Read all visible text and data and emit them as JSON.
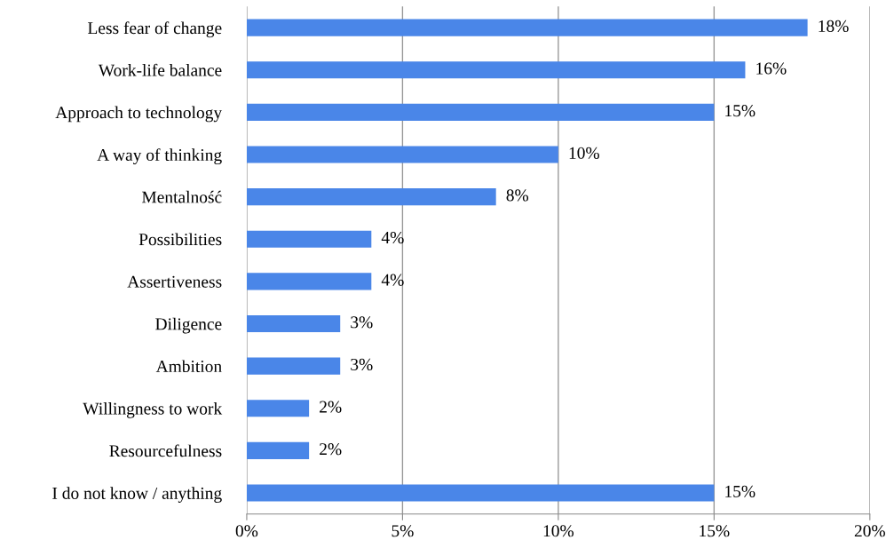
{
  "chart_data": {
    "type": "bar",
    "orientation": "horizontal",
    "categories": [
      "Less fear of change",
      "Work-life balance",
      "Approach to technology",
      "A way of thinking",
      "Mentalność",
      "Possibilities",
      "Assertiveness",
      "Diligence",
      "Ambition",
      "Willingness to work",
      "Resourcefulness",
      "I do not know / anything"
    ],
    "values": [
      18,
      16,
      15,
      10,
      8,
      4,
      4,
      3,
      3,
      2,
      2,
      15
    ],
    "value_labels": [
      "18%",
      "16%",
      "15%",
      "10%",
      "8%",
      "4%",
      "4%",
      "3%",
      "3%",
      "2%",
      "2%",
      "15%"
    ],
    "color": "#4a86e8",
    "xlim": [
      0,
      20
    ],
    "xticks": [
      {
        "value": 0,
        "label": "0%"
      },
      {
        "value": 5,
        "label": "5%"
      },
      {
        "value": 10,
        "label": "10%"
      },
      {
        "value": 15,
        "label": "15%"
      },
      {
        "value": 20,
        "label": "20%"
      }
    ],
    "grid": "x",
    "legend": false
  }
}
